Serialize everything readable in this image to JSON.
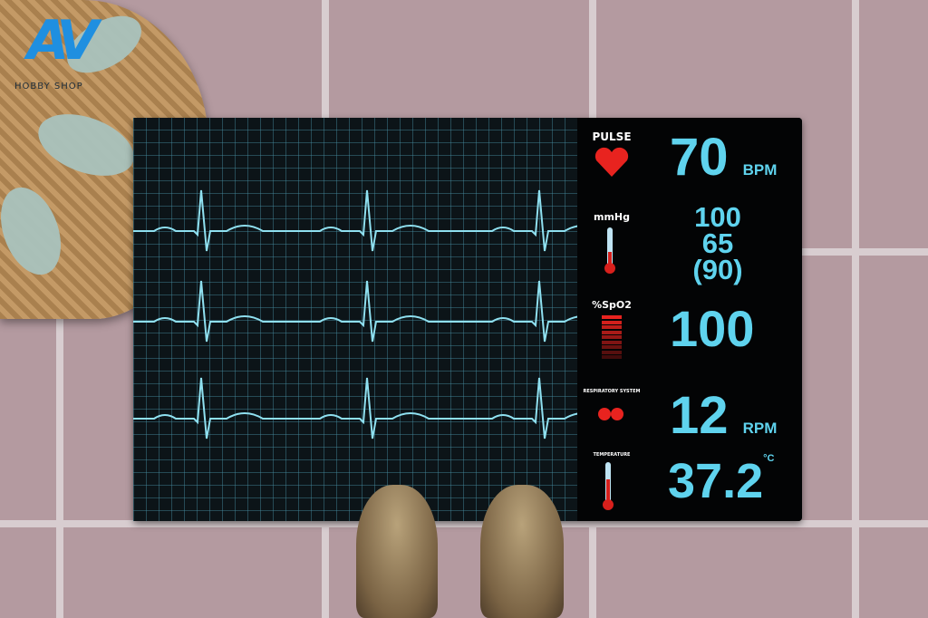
{
  "logo": {
    "text": "Hobby Shop"
  },
  "monitor": {
    "pulse": {
      "label": "PULSE",
      "value": "70",
      "unit": "BPM",
      "icon": "heart-icon"
    },
    "blood_pressure": {
      "label": "mmHg",
      "systolic": "100",
      "diastolic": "65",
      "mean": "(90)",
      "icon": "thermometer-icon"
    },
    "spo2": {
      "label": "%SpO2",
      "value": "100",
      "icon": "signal-bars-icon"
    },
    "respiration": {
      "label": "RESPIRATORY SYSTEM",
      "value": "12",
      "unit": "RPM",
      "icon": "lungs-icon"
    },
    "temperature": {
      "label": "TEMPERATURE",
      "value": "37.2",
      "unit": "°C",
      "icon": "thermometer-icon"
    }
  },
  "colors": {
    "trace": "#8fe0f0",
    "value": "#5fd3ee",
    "icon_red": "#e8231f"
  }
}
